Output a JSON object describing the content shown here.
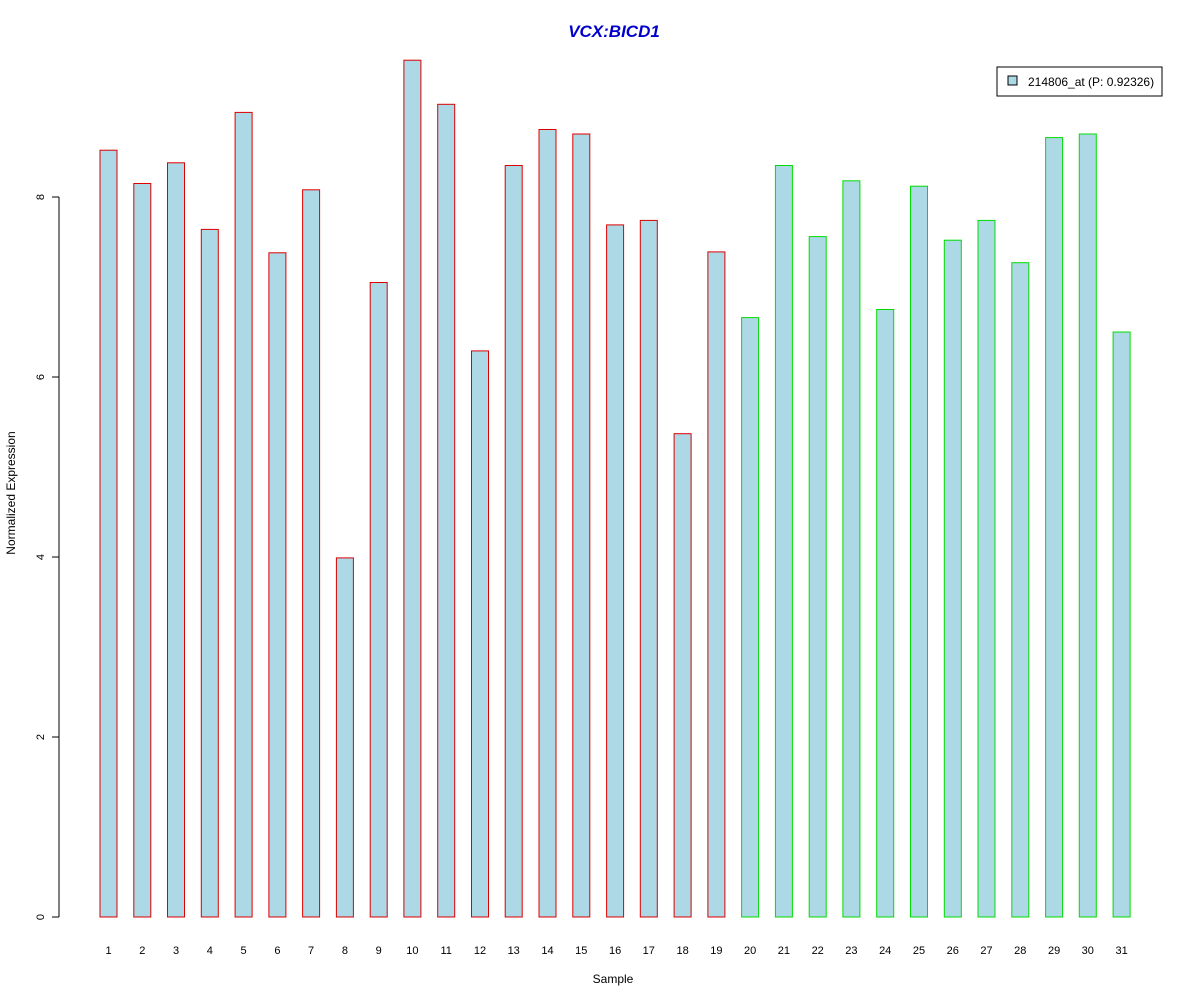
{
  "chart_data": {
    "type": "bar",
    "title": "VCX:BICD1",
    "xlabel": "Sample",
    "ylabel": "Normalized Expression",
    "categories": [
      "1",
      "2",
      "3",
      "4",
      "5",
      "6",
      "7",
      "8",
      "9",
      "10",
      "11",
      "12",
      "13",
      "14",
      "15",
      "16",
      "17",
      "18",
      "19",
      "20",
      "21",
      "22",
      "23",
      "24",
      "25",
      "26",
      "27",
      "28",
      "29",
      "30",
      "31"
    ],
    "series": [
      {
        "name": "214806_at (P: 0.92326)",
        "values": [
          8.52,
          8.15,
          8.38,
          7.64,
          8.94,
          7.38,
          8.08,
          3.99,
          7.05,
          9.52,
          9.03,
          6.29,
          8.35,
          8.75,
          8.7,
          7.69,
          7.74,
          5.37,
          7.39,
          6.66,
          8.35,
          7.56,
          8.18,
          6.75,
          8.12,
          7.52,
          7.74,
          7.27,
          8.66,
          8.7,
          6.5
        ]
      }
    ],
    "group_border_colors": [
      "#dd0000",
      "#dd0000",
      "#dd0000",
      "#dd0000",
      "#dd0000",
      "#dd0000",
      "#dd0000",
      "#dd0000",
      "#dd0000",
      "#dd0000",
      "#dd0000",
      "#dd0000",
      "#dd0000",
      "#dd0000",
      "#dd0000",
      "#dd0000",
      "#dd0000",
      "#dd0000",
      "#dd0000",
      "#00dd00",
      "#00dd00",
      "#00dd00",
      "#00dd00",
      "#00dd00",
      "#00dd00",
      "#00dd00",
      "#00dd00",
      "#00dd00",
      "#00dd00",
      "#00dd00",
      "#00dd00"
    ],
    "yticks": [
      "0",
      "2",
      "4",
      "6",
      "8"
    ],
    "ylim": [
      0,
      9.6
    ],
    "bar_fill": "#add8e6",
    "title_color": "#0000cc",
    "legend_position": "top-right",
    "grid": false
  }
}
